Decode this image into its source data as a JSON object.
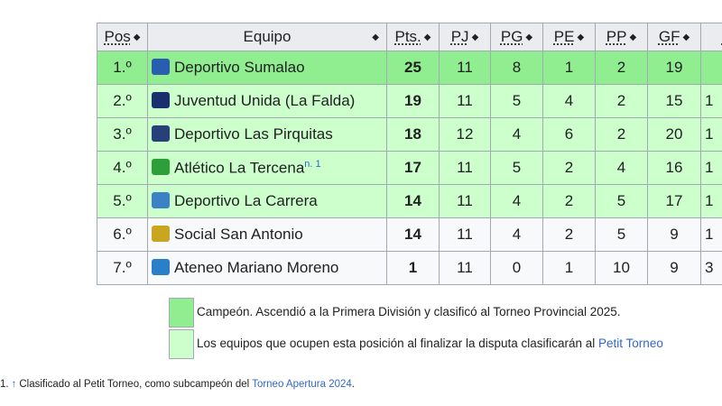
{
  "table": {
    "headers": [
      "Pos",
      "Equipo",
      "Pts.",
      "PJ",
      "PG",
      "PE",
      "PP",
      "GF",
      "G"
    ],
    "rows": [
      {
        "pos": "1.º",
        "team": "Deportivo Sumalao",
        "note": "",
        "pts": "25",
        "pj": "11",
        "pg": "8",
        "pe": "1",
        "pp": "2",
        "gf": "19",
        "g": "",
        "status": "champ",
        "crest_color": "#2a5db0"
      },
      {
        "pos": "2.º",
        "team": "Juventud Unida (La Falda)",
        "note": "",
        "pts": "19",
        "pj": "11",
        "pg": "5",
        "pe": "4",
        "pp": "2",
        "gf": "15",
        "g": "1",
        "status": "qual",
        "crest_color": "#1a2f6e"
      },
      {
        "pos": "3.º",
        "team": "Deportivo Las Pirquitas",
        "note": "",
        "pts": "18",
        "pj": "12",
        "pg": "4",
        "pe": "6",
        "pp": "2",
        "gf": "20",
        "g": "1",
        "status": "qual",
        "crest_color": "#27407a"
      },
      {
        "pos": "4.º",
        "team": "Atlético La Tercena",
        "note": "n. 1",
        "pts": "17",
        "pj": "11",
        "pg": "5",
        "pe": "2",
        "pp": "4",
        "gf": "16",
        "g": "1",
        "status": "qual",
        "crest_color": "#2e9e3a"
      },
      {
        "pos": "5.º",
        "team": "Deportivo La Carrera",
        "note": "",
        "pts": "14",
        "pj": "11",
        "pg": "4",
        "pe": "2",
        "pp": "5",
        "gf": "17",
        "g": "1",
        "status": "qual",
        "crest_color": "#3b82c4"
      },
      {
        "pos": "6.º",
        "team": "Social San Antonio",
        "note": "",
        "pts": "14",
        "pj": "11",
        "pg": "4",
        "pe": "2",
        "pp": "5",
        "gf": "9",
        "g": "1",
        "status": "none",
        "crest_color": "#c9a620"
      },
      {
        "pos": "7.º",
        "team": "Ateneo Mariano Moreno",
        "note": "",
        "pts": "1",
        "pj": "11",
        "pg": "0",
        "pe": "1",
        "pp": "10",
        "gf": "9",
        "g": "3",
        "status": "none",
        "crest_color": "#2a7fc9"
      }
    ]
  },
  "legend": [
    {
      "color": "#90ee90",
      "text": "Campeón. Ascendió a la Primera División y clasificó al Torneo Provincial 2025.",
      "link": ""
    },
    {
      "color": "#ccffcc",
      "text": "Los equipos que ocupen esta posición al finalizar la disputa clasificarán al ",
      "link": "Petit Torneo"
    }
  ],
  "footnote": {
    "num": "1.",
    "arrow": "↑",
    "text": "Clasificado al Petit Torneo, como subcampeón del ",
    "link": "Torneo Apertura 2024",
    "end": "."
  }
}
